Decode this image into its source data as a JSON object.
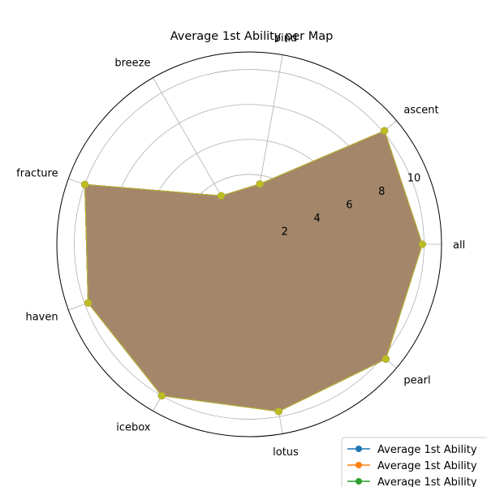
{
  "chart_data": {
    "type": "radar",
    "title": "Average 1st Ability per Map",
    "categories": [
      "all",
      "ascent",
      "bind",
      "breeze",
      "fracture",
      "haven",
      "icebox",
      "lotus",
      "pearl"
    ],
    "rlim": [
      0,
      11
    ],
    "r_ticks": [
      2,
      4,
      6,
      8,
      10
    ],
    "grid": true,
    "legend_placement": "lower-right",
    "fill_color": "#a4876a",
    "series": [
      {
        "name": "Average 1st Ability",
        "color": "#1f77b4",
        "values": [
          9.9,
          10.1,
          3.5,
          3.2,
          10.0,
          9.8,
          10.0,
          9.7,
          10.2
        ]
      },
      {
        "name": "Average 1st Ability",
        "color": "#ff7f0e",
        "values": [
          9.9,
          10.1,
          3.5,
          3.2,
          10.0,
          9.8,
          10.0,
          9.7,
          10.2
        ]
      },
      {
        "name": "Average 1st Ability",
        "color": "#2ca02c",
        "values": [
          9.9,
          10.1,
          3.5,
          3.2,
          10.0,
          9.8,
          10.0,
          9.7,
          10.2
        ]
      },
      {
        "color": "#d62728",
        "values": [
          9.9,
          10.1,
          3.5,
          3.2,
          10.0,
          9.8,
          10.0,
          9.7,
          10.2
        ]
      },
      {
        "color": "#9467bd",
        "values": [
          9.9,
          10.1,
          3.5,
          3.2,
          10.0,
          9.8,
          10.0,
          9.7,
          10.2
        ]
      },
      {
        "color": "#8c564b",
        "values": [
          9.9,
          10.1,
          3.5,
          3.2,
          10.0,
          9.8,
          10.0,
          9.7,
          10.2
        ]
      },
      {
        "color": "#e377c2",
        "values": [
          9.9,
          10.1,
          3.5,
          3.2,
          10.0,
          9.8,
          10.0,
          9.7,
          10.2
        ]
      },
      {
        "color": "#7f7f7f",
        "values": [
          9.9,
          10.1,
          3.5,
          3.2,
          10.0,
          9.8,
          10.0,
          9.7,
          10.2
        ]
      },
      {
        "color": "#bcbd22",
        "values": [
          9.9,
          10.1,
          3.5,
          3.2,
          10.0,
          9.8,
          10.0,
          9.7,
          10.2
        ]
      }
    ]
  }
}
